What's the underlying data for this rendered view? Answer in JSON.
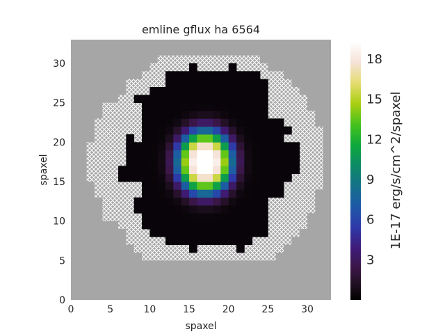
{
  "chart_data": {
    "type": "heatmap",
    "title": "emline gflux ha 6564",
    "xlabel": "spaxel",
    "ylabel": "spaxel",
    "xlim": [
      0,
      33
    ],
    "ylim": [
      0,
      33
    ],
    "x_ticks": [
      0,
      5,
      10,
      15,
      20,
      25,
      30
    ],
    "y_ticks": [
      0,
      5,
      10,
      15,
      20,
      25,
      30
    ],
    "grid": false,
    "background_color": "#a6a6a6",
    "no_data_pattern": "white-crosshatch",
    "colormap": "cubehelix-like (black - purple - blue - green - yellow - white)",
    "colorbar": {
      "label": "1E-17 erg/s/cm^2/spaxel",
      "ticks": [
        3,
        6,
        9,
        12,
        15,
        18
      ],
      "range": [
        0,
        19.3
      ]
    },
    "estimated_peak": {
      "x": 16.5,
      "y": 17.0,
      "value": 19.3
    },
    "estimated_profile": {
      "sigma_x": 2.7,
      "sigma_y": 3.1
    },
    "valid_row_spans": [
      {
        "row": 6,
        "from": 15,
        "to": 15
      },
      {
        "row": 6,
        "from": 21,
        "to": 21
      },
      {
        "row": 7,
        "from": 12,
        "to": 22
      },
      {
        "row": 8,
        "from": 10,
        "to": 24
      },
      {
        "row": 9,
        "from": 9,
        "to": 24
      },
      {
        "row": 10,
        "from": 9,
        "to": 23
      },
      {
        "row": 11,
        "from": 8,
        "to": 24
      },
      {
        "row": 12,
        "from": 8,
        "to": 24
      },
      {
        "row": 13,
        "from": 9,
        "to": 26
      },
      {
        "row": 14,
        "from": 9,
        "to": 26
      },
      {
        "row": 15,
        "from": 6,
        "to": 27
      },
      {
        "row": 16,
        "from": 6,
        "to": 28
      },
      {
        "row": 17,
        "from": 7,
        "to": 28
      },
      {
        "row": 18,
        "from": 7,
        "to": 28
      },
      {
        "row": 19,
        "from": 7,
        "to": 28
      },
      {
        "row": 20,
        "from": 9,
        "to": 26
      },
      {
        "row": 21,
        "from": 9,
        "to": 27
      },
      {
        "row": 22,
        "from": 9,
        "to": 26
      },
      {
        "row": 23,
        "from": 9,
        "to": 24
      },
      {
        "row": 24,
        "from": 9,
        "to": 24
      },
      {
        "row": 25,
        "from": 8,
        "to": 24
      },
      {
        "row": 26,
        "from": 10,
        "to": 24
      },
      {
        "row": 27,
        "from": 12,
        "to": 24
      },
      {
        "row": 28,
        "from": 12,
        "to": 23
      },
      {
        "row": 29,
        "from": 15,
        "to": 15
      },
      {
        "row": 29,
        "from": 20,
        "to": 20
      }
    ],
    "masked_row_spans": [
      {
        "row": 5,
        "from": 9,
        "to": 25
      },
      {
        "row": 6,
        "from": 8,
        "to": 26
      },
      {
        "row": 7,
        "from": 7,
        "to": 27
      },
      {
        "row": 8,
        "from": 7,
        "to": 28
      },
      {
        "row": 9,
        "from": 6,
        "to": 29
      },
      {
        "row": 10,
        "from": 4,
        "to": 29
      },
      {
        "row": 11,
        "from": 4,
        "to": 30
      },
      {
        "row": 12,
        "from": 4,
        "to": 30
      },
      {
        "row": 13,
        "from": 3,
        "to": 30
      },
      {
        "row": 14,
        "from": 3,
        "to": 31
      },
      {
        "row": 15,
        "from": 2,
        "to": 31
      },
      {
        "row": 16,
        "from": 2,
        "to": 31
      },
      {
        "row": 17,
        "from": 2,
        "to": 31
      },
      {
        "row": 18,
        "from": 2,
        "to": 31
      },
      {
        "row": 19,
        "from": 2,
        "to": 31
      },
      {
        "row": 20,
        "from": 3,
        "to": 31
      },
      {
        "row": 21,
        "from": 3,
        "to": 31
      },
      {
        "row": 22,
        "from": 3,
        "to": 30
      },
      {
        "row": 23,
        "from": 4,
        "to": 30
      },
      {
        "row": 24,
        "from": 4,
        "to": 29
      },
      {
        "row": 25,
        "from": 6,
        "to": 29
      },
      {
        "row": 26,
        "from": 7,
        "to": 28
      },
      {
        "row": 27,
        "from": 7,
        "to": 27
      },
      {
        "row": 28,
        "from": 9,
        "to": 26
      },
      {
        "row": 29,
        "from": 10,
        "to": 24
      },
      {
        "row": 30,
        "from": 11,
        "to": 23
      }
    ],
    "extra_valid_cells": [
      [
        7,
        20
      ],
      [
        7,
        19
      ],
      [
        25,
        14
      ],
      [
        26,
        14
      ],
      [
        24,
        10
      ]
    ]
  }
}
